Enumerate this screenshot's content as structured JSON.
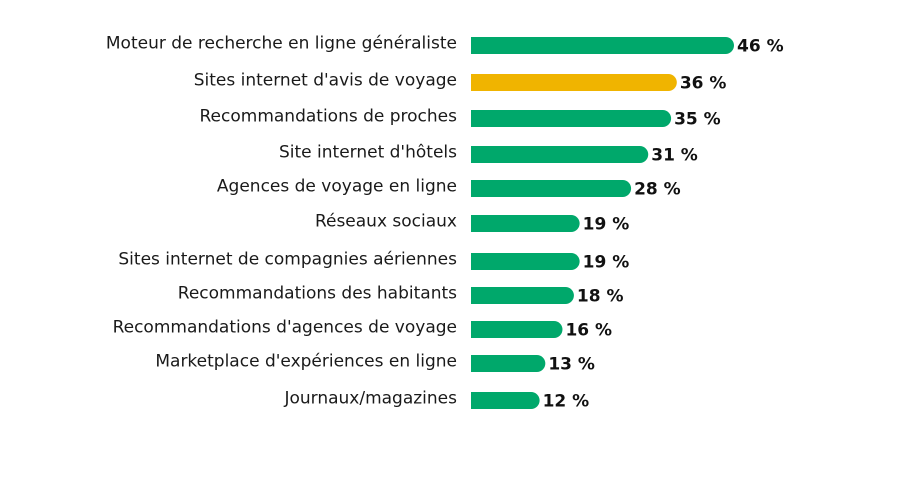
{
  "chart_data": {
    "type": "bar",
    "orientation": "horizontal",
    "categories": [
      "Moteur de recherche en ligne généraliste",
      "Sites internet d'avis de voyage",
      "Recommandations de proches",
      "Site internet d'hôtels",
      "Agences de voyage en ligne",
      "Réseaux sociaux",
      "Sites internet de compagnies aériennes",
      "Recommandations des habitants",
      "Recommandations d'agences de voyage",
      "Marketplace d'expériences en ligne",
      "Journaux/magazines"
    ],
    "values": [
      46,
      36,
      35,
      31,
      28,
      19,
      19,
      18,
      16,
      13,
      12
    ],
    "value_labels": [
      "46 %",
      "36 %",
      "35 %",
      "31 %",
      "28 %",
      "19 %",
      "19 %",
      "18 %",
      "16 %",
      "13 %",
      "12 %"
    ],
    "colors": {
      "default": "#00a86b",
      "highlight": "#f0b400"
    },
    "highlight_index": 1,
    "title": "",
    "xlabel": "",
    "ylabel": "",
    "xlim": [
      0,
      46
    ],
    "grid": false,
    "legend": "none"
  }
}
